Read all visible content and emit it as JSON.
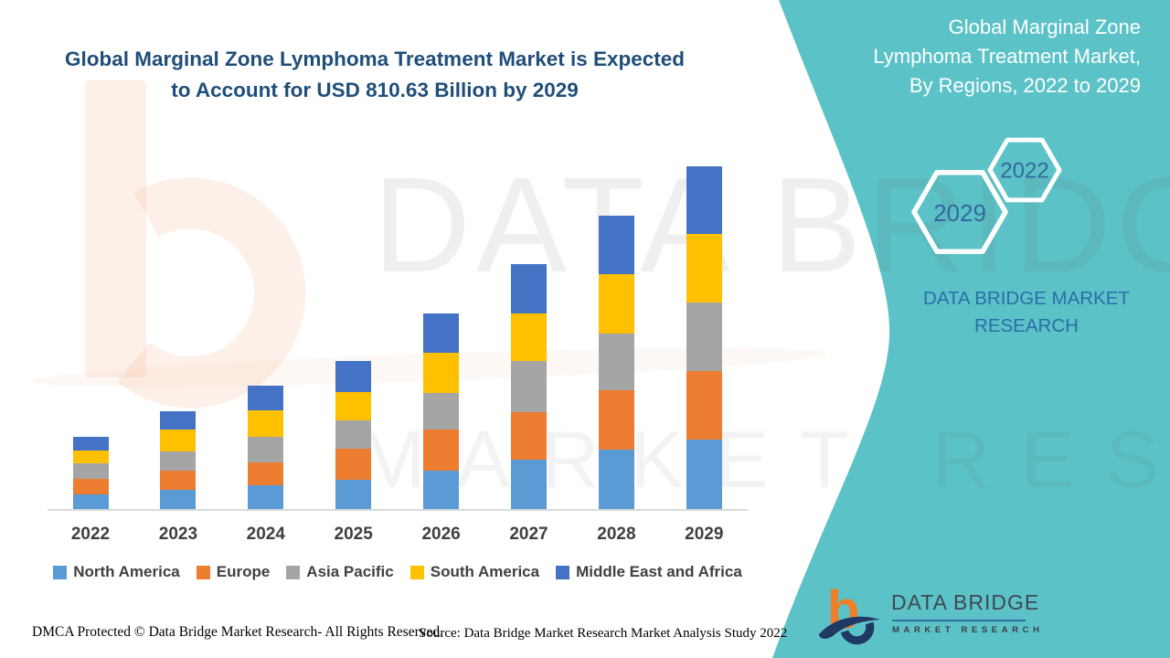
{
  "title": {
    "line1": "Global Marginal Zone Lymphoma Treatment Market is Expected",
    "line2": "to Account for USD 810.63 Billion by 2029"
  },
  "side_panel": {
    "heading_lines": [
      "Global Marginal Zone",
      "Lymphoma Treatment Market,",
      "By Regions, 2022 to 2029"
    ],
    "hexagon_labels": [
      "2029",
      "2022"
    ],
    "brand_lines": [
      "DATA BRIDGE MARKET",
      "RESEARCH"
    ],
    "panel_color": "#5BC2C7"
  },
  "watermark": {
    "brand_text": "DATA BRIDGE",
    "sub_text": "MARKET RESEARCH"
  },
  "chart_data": {
    "type": "bar",
    "stacked": true,
    "value_unit": "USD Billion",
    "categories": [
      "2022",
      "2023",
      "2024",
      "2025",
      "2026",
      "2027",
      "2028",
      "2029"
    ],
    "series": [
      {
        "name": "North America",
        "color": "#5B9BD5",
        "values": [
          34.6,
          45.4,
          56.2,
          69.2,
          90.8,
          116.7,
          140.5,
          164.3
        ]
      },
      {
        "name": "Europe",
        "color": "#ED7D31",
        "values": [
          36.8,
          45.4,
          54.1,
          73.5,
          97.3,
          112.4,
          140.5,
          162.1
        ]
      },
      {
        "name": "Asia Pacific",
        "color": "#A5A5A5",
        "values": [
          36.8,
          45.4,
          60.5,
          67.0,
          86.5,
          121.1,
          134.0,
          162.1
        ]
      },
      {
        "name": "South America",
        "color": "#FFC000",
        "values": [
          30.3,
          51.9,
          62.7,
          67.0,
          95.1,
          112.4,
          140.5,
          162.1
        ]
      },
      {
        "name": "Middle East and Africa",
        "color": "#4472C4",
        "values": [
          32.4,
          43.2,
          58.4,
          73.5,
          93.0,
          116.7,
          138.4,
          160.0
        ]
      }
    ],
    "totals": [
      170.9,
      231.3,
      291.9,
      350.2,
      462.7,
      579.3,
      693.9,
      810.63
    ],
    "ylim": [
      0,
      880
    ],
    "gridlines": false,
    "legend_position": "bottom",
    "axis_color": "#D9D9D9"
  },
  "footer": {
    "dmca": "DMCA Protected © Data Bridge Market Research- All Rights Reserved.",
    "source": "Source: Data Bridge Market Research Market Analysis Study 2022"
  },
  "logo": {
    "title": "DATA BRIDGE",
    "subtitle": "MARKET RESEARCH"
  }
}
